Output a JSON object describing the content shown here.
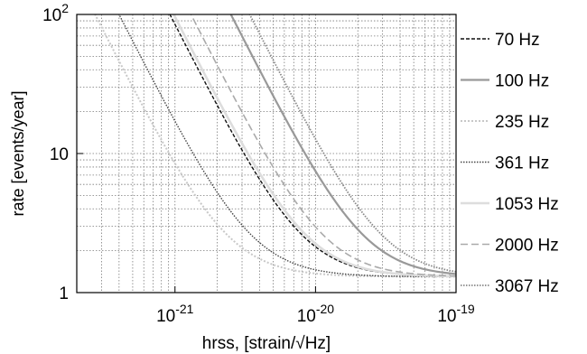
{
  "chart_data": {
    "type": "line",
    "title": "",
    "xlabel": "hrss, [strain/√Hz]",
    "ylabel": "rate [events/year]",
    "x_scale": "log",
    "y_scale": "log",
    "xlim": [
      2e-22,
      1e-19
    ],
    "ylim": [
      1,
      100
    ],
    "grid": true,
    "legend_position": "right",
    "x_ticks": [
      {
        "value": 1e-21,
        "base": "10",
        "exp": "-21"
      },
      {
        "value": 1e-20,
        "base": "10",
        "exp": "-20"
      },
      {
        "value": 1e-19,
        "base": "10",
        "exp": "-19"
      }
    ],
    "y_ticks": [
      {
        "value": 1,
        "label": "1",
        "base": "",
        "exp": ""
      },
      {
        "value": 10,
        "label": "10",
        "base": "",
        "exp": ""
      },
      {
        "value": 100,
        "label": "",
        "base": "10",
        "exp": "2"
      }
    ],
    "series": [
      {
        "name": "70 Hz",
        "color": "#111111",
        "dash": "4,2",
        "width": 1.4,
        "asymptote": 1.3,
        "x0": 9.2e-22
      },
      {
        "name": "100 Hz",
        "color": "#999999",
        "dash": "",
        "width": 2.2,
        "asymptote": 1.3,
        "x0": 2.5e-21
      },
      {
        "name": "235 Hz",
        "color": "#c8c8c8",
        "dash": "2,2",
        "width": 2.0,
        "asymptote": 1.3,
        "x0": 2.7e-22
      },
      {
        "name": "361 Hz",
        "color": "#444444",
        "dash": "1.5,1.5",
        "width": 1.4,
        "asymptote": 1.3,
        "x0": 4e-22
      },
      {
        "name": "1053 Hz",
        "color": "#dddddd",
        "dash": "",
        "width": 2.6,
        "asymptote": 1.3,
        "x0": 9.8e-22
      },
      {
        "name": "2000 Hz",
        "color": "#aaaaaa",
        "dash": "8,4",
        "width": 1.6,
        "asymptote": 1.3,
        "x0": 1.3e-21
      },
      {
        "name": "3067 Hz",
        "color": "#888888",
        "dash": "1.5,1.5",
        "width": 1.8,
        "asymptote": 1.3,
        "x0": 3.4e-21
      }
    ]
  }
}
